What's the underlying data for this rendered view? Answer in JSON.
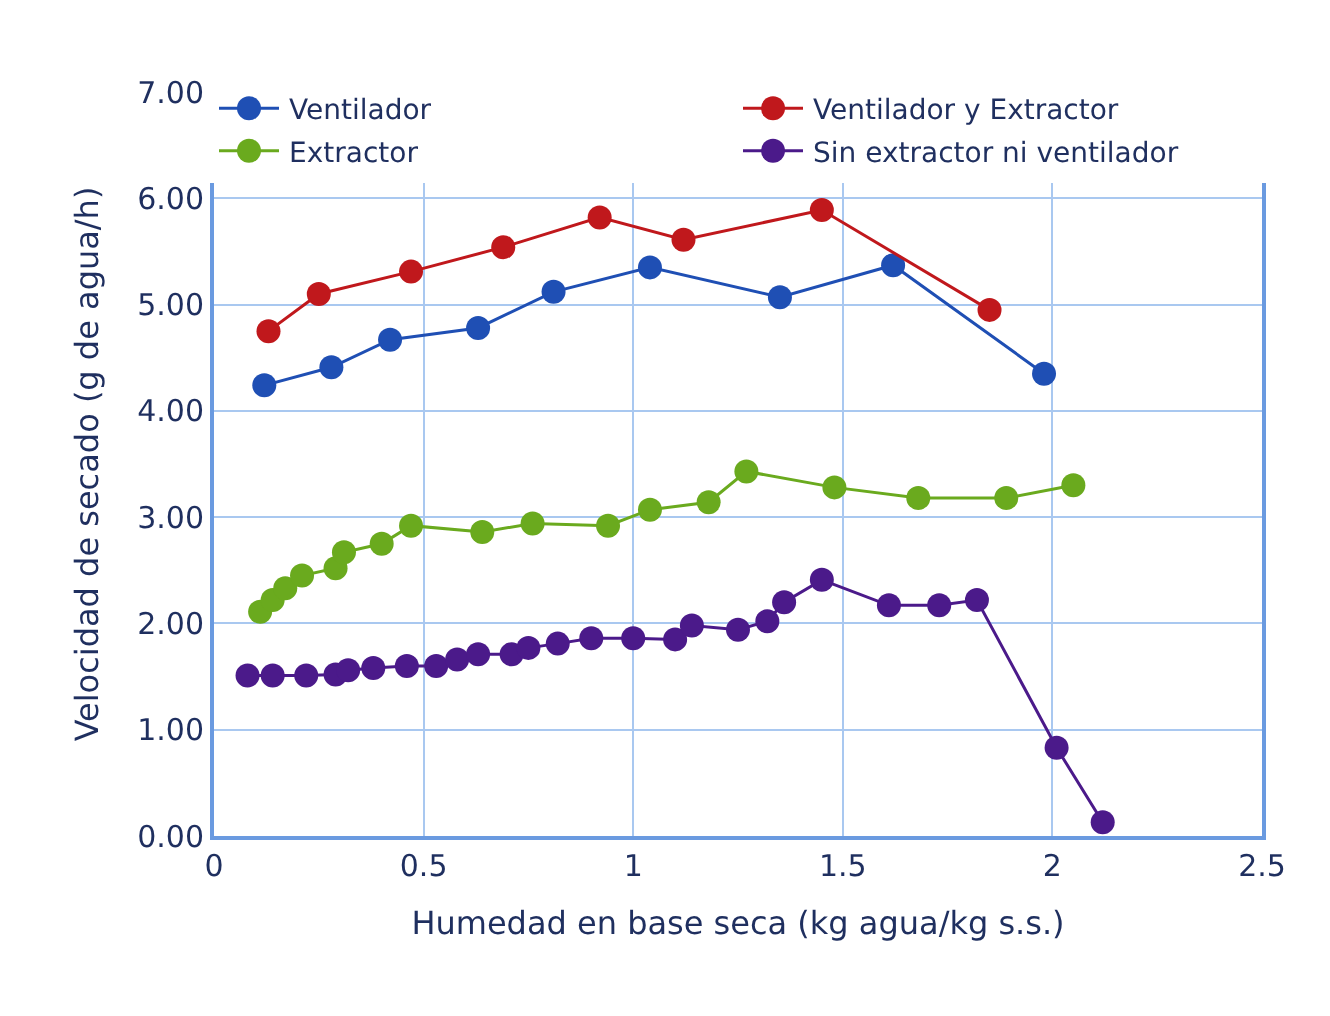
{
  "chart_data": {
    "type": "line",
    "xlabel": "Humedad en base seca (kg agua/kg s.s.)",
    "ylabel": "Velocidad de secado (g de agua/h)",
    "xlim": [
      0,
      2.5
    ],
    "xticks": [
      0,
      0.5,
      1,
      1.5,
      2,
      2.5
    ],
    "ylim": [
      0,
      7
    ],
    "yticks": [
      {
        "value": 0,
        "label": "0.00"
      },
      {
        "value": 1,
        "label": "1.00"
      },
      {
        "value": 2,
        "label": "2.00"
      },
      {
        "value": 3,
        "label": "3.00"
      },
      {
        "value": 4,
        "label": "4.00"
      },
      {
        "value": 5,
        "label": "5.00"
      },
      {
        "value": 6,
        "label": "6.00"
      },
      {
        "value": 7,
        "label": "7.00"
      }
    ],
    "grid": true,
    "legend": "top",
    "marker": "circle",
    "line_style": "solid",
    "series": [
      {
        "name": "Ventilador",
        "color": "#1f4fb4",
        "x": [
          0.12,
          0.28,
          0.42,
          0.63,
          0.81,
          1.04,
          1.35,
          1.62,
          1.98
        ],
        "values": [
          4.24,
          4.41,
          4.67,
          4.78,
          5.12,
          5.35,
          5.07,
          5.37,
          4.35
        ]
      },
      {
        "name": "Ventilador y Extractor",
        "color": "#c0181c",
        "x": [
          0.13,
          0.25,
          0.47,
          0.69,
          0.92,
          1.12,
          1.45,
          1.85
        ],
        "values": [
          4.75,
          5.1,
          5.31,
          5.54,
          5.82,
          5.61,
          5.89,
          4.95
        ]
      },
      {
        "name": "Extractor",
        "color": "#6aaa1e",
        "x": [
          0.11,
          0.14,
          0.17,
          0.21,
          0.29,
          0.31,
          0.4,
          0.47,
          0.64,
          0.76,
          0.94,
          1.04,
          1.18,
          1.27,
          1.48,
          1.68,
          1.89,
          2.05
        ],
        "values": [
          2.11,
          2.22,
          2.33,
          2.45,
          2.52,
          2.67,
          2.75,
          2.92,
          2.86,
          2.94,
          2.92,
          3.07,
          3.14,
          3.43,
          3.28,
          3.18,
          3.18,
          3.3
        ]
      },
      {
        "name": "Sin extractor ni ventilador",
        "color": "#4b1a8a",
        "x": [
          0.08,
          0.14,
          0.22,
          0.29,
          0.32,
          0.38,
          0.46,
          0.53,
          0.58,
          0.63,
          0.71,
          0.75,
          0.82,
          0.9,
          1.0,
          1.1,
          1.14,
          1.25,
          1.32,
          1.36,
          1.45,
          1.61,
          1.73,
          1.82,
          2.01,
          2.12
        ],
        "values": [
          1.51,
          1.51,
          1.51,
          1.52,
          1.56,
          1.58,
          1.6,
          1.6,
          1.66,
          1.71,
          1.71,
          1.77,
          1.81,
          1.86,
          1.86,
          1.85,
          1.98,
          1.94,
          2.02,
          2.2,
          2.41,
          2.17,
          2.17,
          2.22,
          0.83,
          0.13
        ]
      }
    ]
  }
}
